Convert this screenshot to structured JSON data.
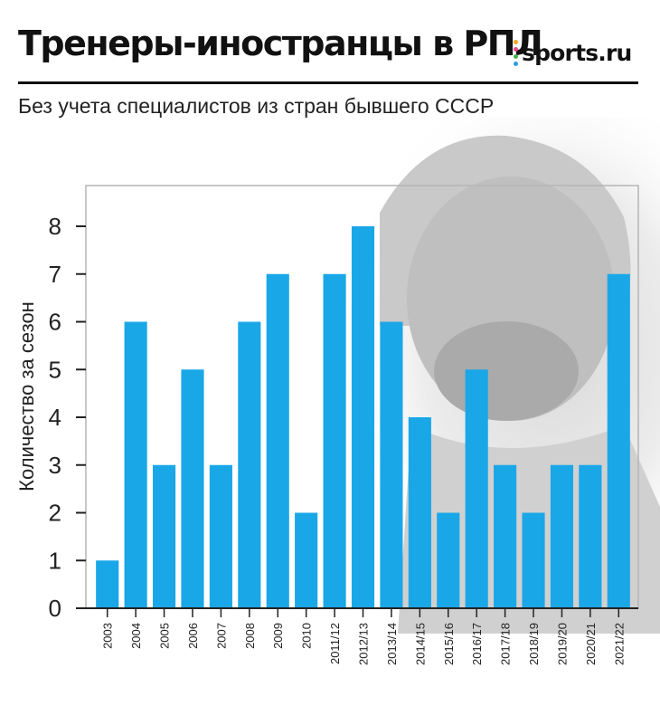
{
  "header": {
    "title": "Тренеры-иностранцы в РПЛ",
    "brand": "sports.ru",
    "brand_dot_colors": [
      "#f5a623",
      "#e94b8a",
      "#3fb549",
      "#2d9ee0"
    ],
    "subtitle": "Без учета специалистов из стран бывшего СССР"
  },
  "colors": {
    "bar": "#1aa7e8",
    "axis": "#222222",
    "frame": "#b5b5b5"
  },
  "chart_data": {
    "type": "bar",
    "title": "Тренеры-иностранцы в РПЛ",
    "subtitle": "Без учета специалистов из стран бывшего СССР",
    "xlabel": "",
    "ylabel": "Количество за сезон",
    "ylim": [
      0,
      8
    ],
    "yticks": [
      0,
      1,
      2,
      3,
      4,
      5,
      6,
      7,
      8
    ],
    "grid": false,
    "categories": [
      "2003",
      "2004",
      "2005",
      "2006",
      "2007",
      "2008",
      "2009",
      "2010",
      "2011/12",
      "2012/13",
      "2013/14",
      "2014/15",
      "2015/16",
      "2016/17",
      "2017/18",
      "2018/19",
      "2019/20",
      "2020/21",
      "2021/22"
    ],
    "values": [
      1,
      6,
      3,
      5,
      3,
      6,
      7,
      2,
      7,
      8,
      6,
      4,
      2,
      5,
      3,
      2,
      3,
      3,
      7
    ]
  }
}
